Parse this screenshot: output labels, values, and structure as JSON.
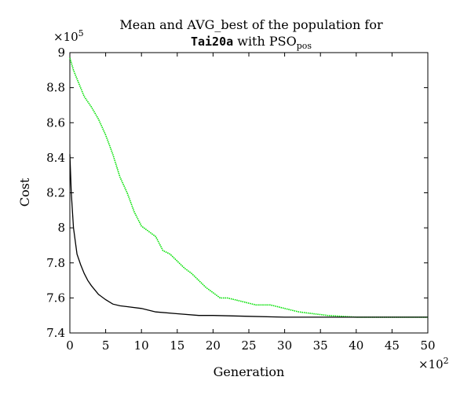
{
  "chart_data": {
    "type": "line",
    "title_line1": "Mean and AVG_best of the population for",
    "title_line2_code": "Tai20a",
    "title_line2_mid": " with PSO",
    "title_line2_sub": "pos",
    "xlabel": "Generation",
    "ylabel": "Cost",
    "x_multiplier_base": "×10",
    "x_multiplier_exp": "2",
    "y_multiplier_base": "×10",
    "y_multiplier_exp": "5",
    "xlim": [
      0,
      50
    ],
    "ylim": [
      7.4,
      9.0
    ],
    "x_ticks": [
      0,
      5,
      10,
      15,
      20,
      25,
      30,
      35,
      40,
      45,
      50
    ],
    "x_tick_labels": [
      "0",
      "5",
      "10",
      "15",
      "20",
      "25",
      "30",
      "35",
      "40",
      "45",
      "50"
    ],
    "y_ticks": [
      7.4,
      7.6,
      7.8,
      8.0,
      8.2,
      8.4,
      8.6,
      8.8,
      9.0
    ],
    "y_tick_labels": [
      "7.4",
      "7.6",
      "7.8",
      "8",
      "8.2",
      "8.4",
      "8.6",
      "8.8",
      "9"
    ],
    "grid": false,
    "series": [
      {
        "color": "#00e000",
        "style": "dotted",
        "x": [
          0,
          0.5,
          1,
          2,
          3,
          4,
          5,
          6,
          7,
          8,
          9,
          10,
          11,
          12,
          13,
          14,
          15,
          16,
          17,
          18,
          19,
          20,
          21,
          22,
          23,
          24,
          25,
          26,
          27,
          28,
          29,
          30,
          32,
          34,
          36,
          38,
          40,
          45,
          50
        ],
        "values": [
          8.97,
          8.9,
          8.85,
          8.75,
          8.69,
          8.62,
          8.53,
          8.42,
          8.29,
          8.2,
          8.09,
          8.01,
          7.98,
          7.95,
          7.87,
          7.85,
          7.81,
          7.77,
          7.74,
          7.7,
          7.66,
          7.63,
          7.6,
          7.6,
          7.59,
          7.58,
          7.57,
          7.56,
          7.56,
          7.56,
          7.55,
          7.54,
          7.52,
          7.51,
          7.5,
          7.495,
          7.49,
          7.49,
          7.49
        ]
      },
      {
        "color": "#000000",
        "style": "solid",
        "x": [
          0,
          0.2,
          0.5,
          1,
          1.5,
          2,
          2.5,
          3,
          4,
          5,
          6,
          7,
          8,
          10,
          12,
          15,
          18,
          20,
          25,
          30,
          35,
          40,
          45,
          50
        ],
        "values": [
          8.42,
          8.2,
          8.0,
          7.85,
          7.79,
          7.74,
          7.7,
          7.67,
          7.62,
          7.59,
          7.565,
          7.555,
          7.55,
          7.54,
          7.52,
          7.51,
          7.5,
          7.5,
          7.495,
          7.49,
          7.49,
          7.49,
          7.49,
          7.49
        ]
      }
    ]
  }
}
